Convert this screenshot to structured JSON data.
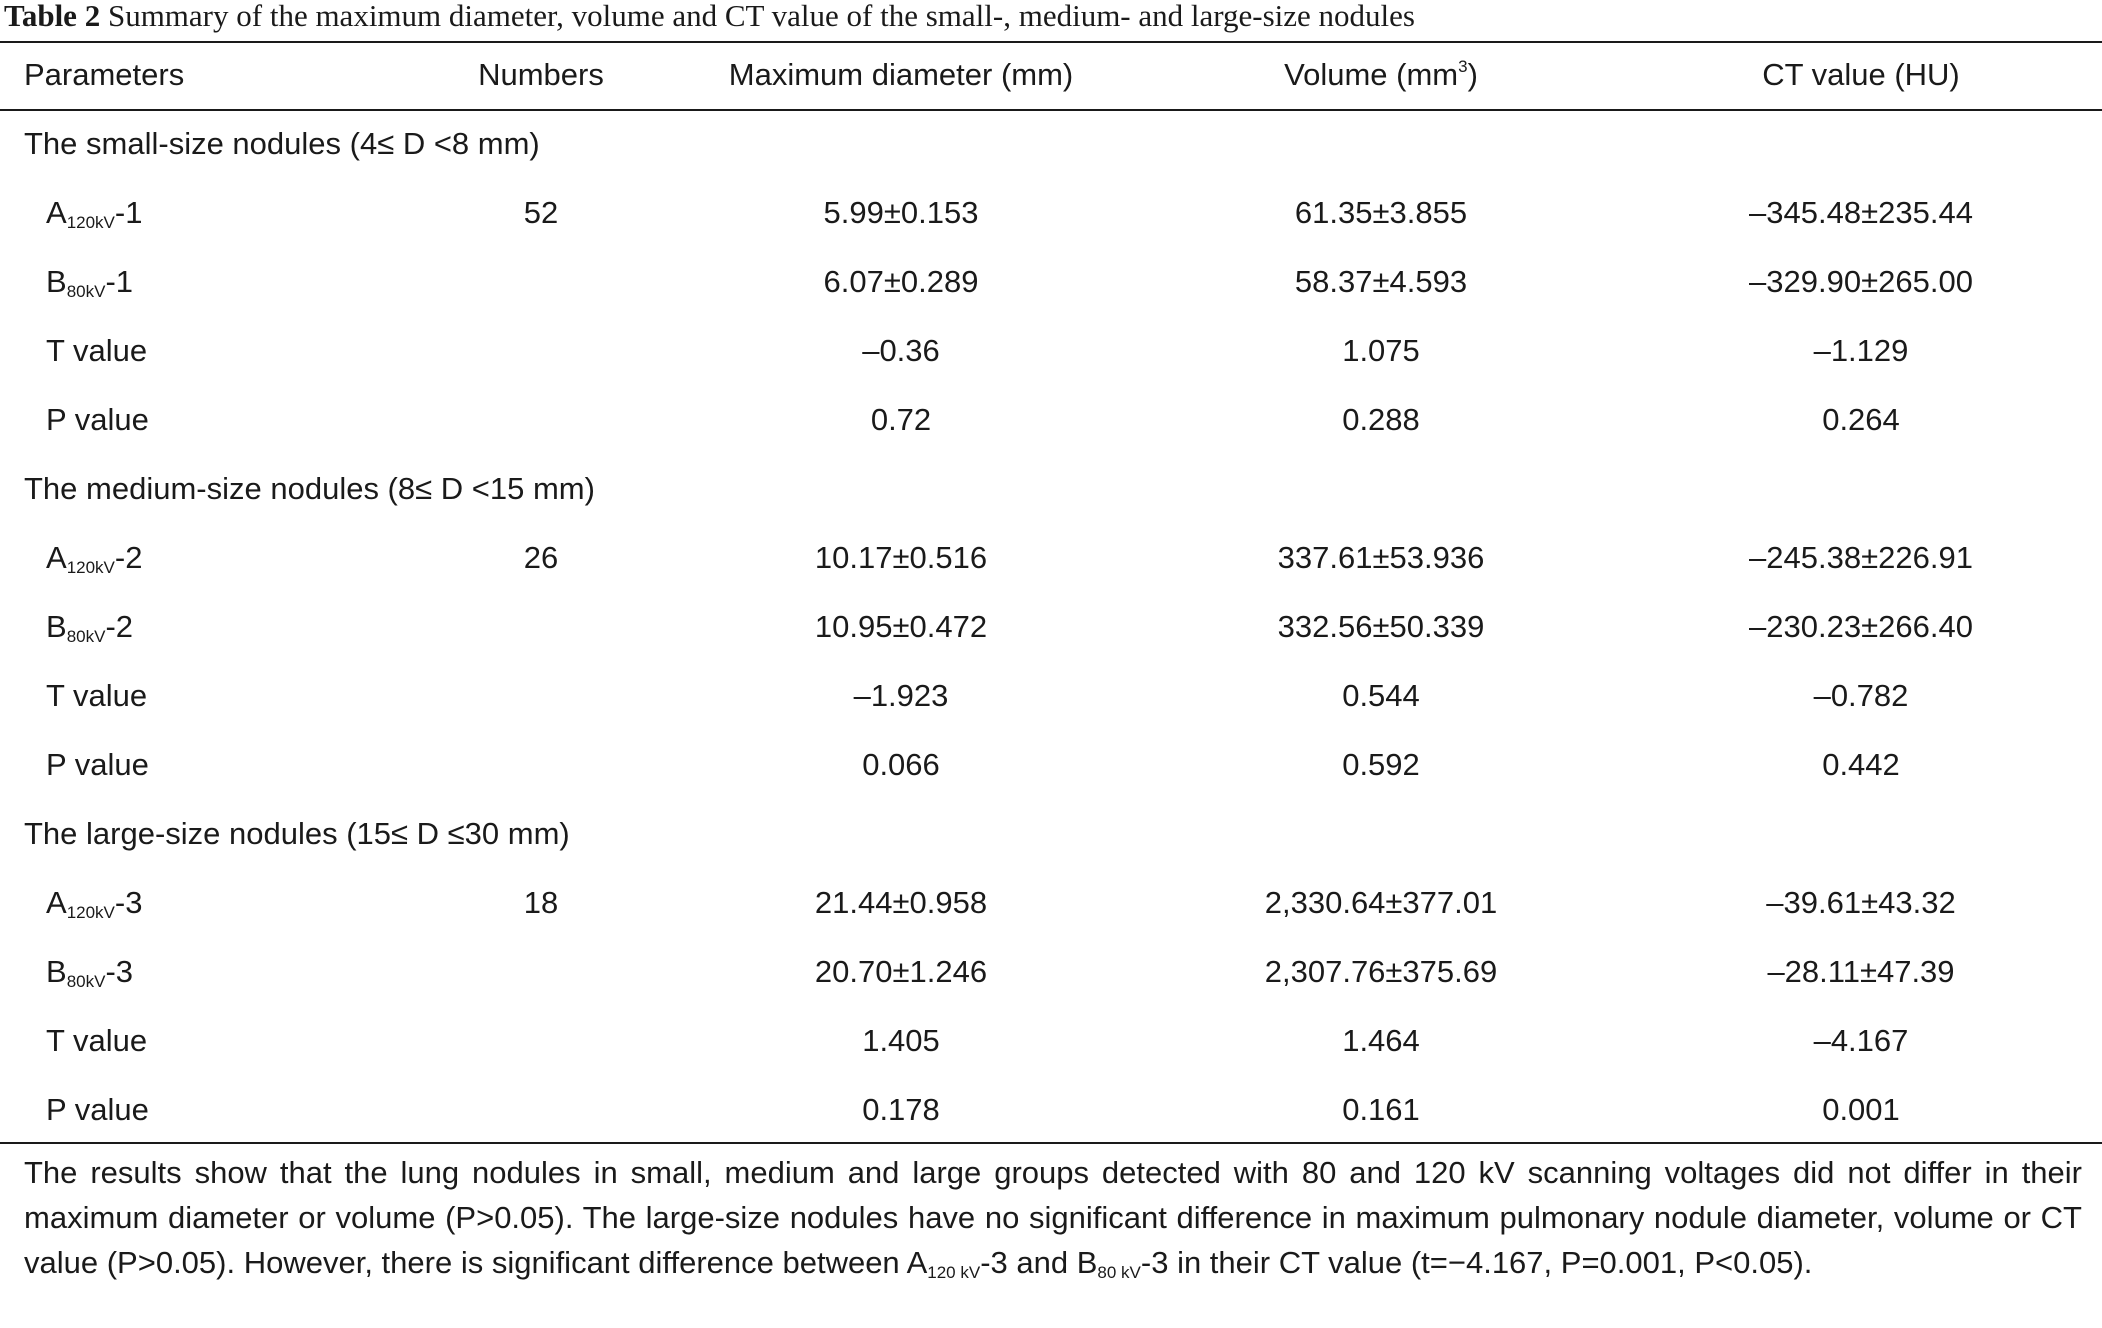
{
  "caption": {
    "label": "Table 2",
    "text": "Summary of the maximum diameter, volume and CT value of the small-, medium- and large-size nodules"
  },
  "header": {
    "parameters": "Parameters",
    "numbers": "Numbers",
    "max_diameter": "Maximum diameter (mm)",
    "volume_base": "Volume (mm",
    "volume_sup": "3",
    "volume_end": ")",
    "ct_value": "CT value (HU)"
  },
  "groups": {
    "small": {
      "title": "The small-size nodules (4≤ D <8 mm)",
      "a": {
        "base": "A",
        "sub": "120kV",
        "suffix": "-1",
        "numbers": "52",
        "diam": "5.99±0.153",
        "vol": "61.35±3.855",
        "ct": "–345.48±235.44"
      },
      "b": {
        "base": "B",
        "sub": "80kV",
        "suffix": "-1",
        "diam": "6.07±0.289",
        "vol": "58.37±4.593",
        "ct": "–329.90±265.00"
      },
      "t": {
        "label": "T value",
        "diam": "–0.36",
        "vol": "1.075",
        "ct": "–1.129"
      },
      "p": {
        "label": "P value",
        "diam": "0.72",
        "vol": "0.288",
        "ct": "0.264"
      }
    },
    "medium": {
      "title": "The medium-size nodules (8≤ D <15 mm)",
      "a": {
        "base": "A",
        "sub": "120kV",
        "suffix": "-2",
        "numbers": "26",
        "diam": "10.17±0.516",
        "vol": "337.61±53.936",
        "ct": "–245.38±226.91"
      },
      "b": {
        "base": "B",
        "sub": "80kV",
        "suffix": "-2",
        "diam": "10.95±0.472",
        "vol": "332.56±50.339",
        "ct": "–230.23±266.40"
      },
      "t": {
        "label": "T value",
        "diam": "–1.923",
        "vol": "0.544",
        "ct": "–0.782"
      },
      "p": {
        "label": "P value",
        "diam": "0.066",
        "vol": "0.592",
        "ct": "0.442"
      }
    },
    "large": {
      "title": "The large-size nodules (15≤ D ≤30 mm)",
      "a": {
        "base": "A",
        "sub": "120kV",
        "suffix": "-3",
        "numbers": "18",
        "diam": "21.44±0.958",
        "vol": "2,330.64±377.01",
        "ct": "–39.61±43.32"
      },
      "b": {
        "base": "B",
        "sub": "80kV",
        "suffix": "-3",
        "diam": "20.70±1.246",
        "vol": "2,307.76±375.69",
        "ct": "–28.11±47.39"
      },
      "t": {
        "label": "T value",
        "diam": "1.405",
        "vol": "1.464",
        "ct": "–4.167"
      },
      "p": {
        "label": "P value",
        "diam": "0.178",
        "vol": "0.161",
        "ct": "0.001"
      }
    }
  },
  "footnote": {
    "part1": "The results show that the lung nodules in small, medium and large groups detected with 80 and 120 kV scanning voltages did not differ in their maximum diameter or volume (P>0.05). The large-size nodules have no significant difference in maximum pulmonary nodule diameter, volume or CT value (P>0.05). However, there is significant difference between A",
    "sub1": "120 kV",
    "part2": "-3 and B",
    "sub2": "80 kV",
    "part3": "-3 in their CT value (t=−4.167, P=0.001, P<0.05)."
  }
}
